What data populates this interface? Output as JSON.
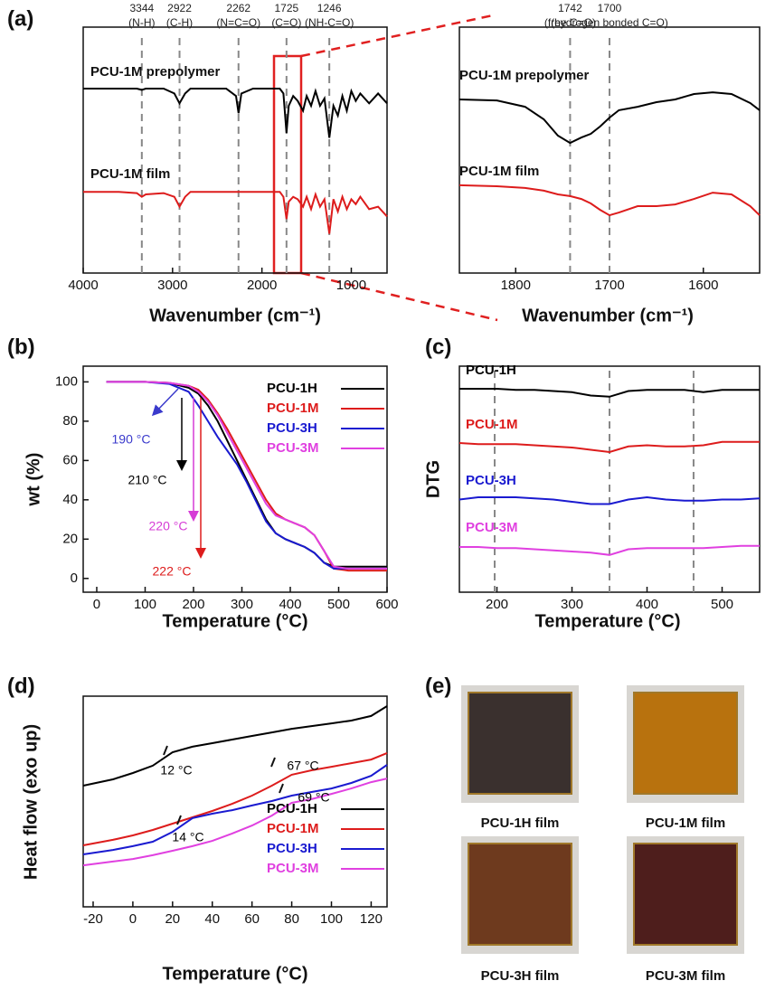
{
  "panel_labels": [
    "(a)",
    "(b)",
    "(c)",
    "(d)",
    "(e)"
  ],
  "chart_data": [
    {
      "type": "line",
      "xlabel": "Wavenumber (cm⁻¹)",
      "xlim": [
        4000,
        600
      ],
      "ylim": [
        0,
        100
      ],
      "xticks": [
        4000,
        3000,
        2000,
        1000
      ],
      "peaks": [
        {
          "value": 3344,
          "group": "(N-H)"
        },
        {
          "value": 2922,
          "group": "(C-H)"
        },
        {
          "value": 2262,
          "group": "(N=C=O)"
        },
        {
          "value": 1725,
          "group": "(C=O)"
        },
        {
          "value": 1246,
          "group": "(NH-C=O)"
        }
      ],
      "x": [
        4000,
        3600,
        3400,
        3344,
        3300,
        3100,
        2980,
        2922,
        2860,
        2800,
        2400,
        2290,
        2262,
        2230,
        2100,
        1900,
        1800,
        1760,
        1725,
        1700,
        1650,
        1600,
        1540,
        1500,
        1450,
        1400,
        1350,
        1300,
        1246,
        1200,
        1150,
        1100,
        1050,
        1000,
        950,
        900,
        800,
        700,
        600
      ],
      "series": [
        {
          "name": "PCU-1M prepolymer",
          "color": "#000000",
          "values": [
            75,
            75,
            75,
            74.5,
            75,
            75,
            73,
            69,
            73,
            75,
            75,
            72,
            65,
            73,
            75,
            75,
            75,
            73,
            57,
            68,
            72,
            70,
            66,
            72,
            68,
            74,
            68,
            71,
            55,
            68,
            64,
            72,
            66,
            74,
            70,
            73,
            69,
            73,
            69
          ]
        },
        {
          "name": "PCU-1M film",
          "color": "#dd1c1c",
          "values": [
            33,
            33,
            32.5,
            31,
            32,
            32.5,
            31,
            27,
            31,
            33,
            33,
            33,
            33,
            33,
            33,
            33,
            33,
            31,
            22,
            29,
            31,
            30,
            27,
            31,
            26,
            32,
            27,
            30,
            16,
            30,
            25,
            31,
            26,
            30,
            28,
            31,
            26,
            27,
            23
          ]
        }
      ]
    },
    {
      "type": "line",
      "xlabel": "Wavenumber (cm⁻¹)",
      "xlim": [
        1860,
        1540
      ],
      "ylim": [
        0,
        100
      ],
      "xticks": [
        1800,
        1700,
        1600
      ],
      "peaks": [
        {
          "value": 1742,
          "group": "(free C=O)"
        },
        {
          "value": 1700,
          "group": "(hydrogen bonded  C=O)"
        }
      ],
      "x": [
        1860,
        1820,
        1790,
        1770,
        1755,
        1742,
        1730,
        1720,
        1710,
        1700,
        1690,
        1670,
        1650,
        1630,
        1610,
        1590,
        1570,
        1550,
        1540
      ],
      "series": [
        {
          "name": "PCU-1M prepolymer",
          "color": "#000000",
          "values": [
            70.6,
            70.2,
            67.6,
            62.5,
            55.9,
            52.9,
            55.1,
            56.6,
            59.6,
            63.2,
            66.2,
            67.6,
            69.5,
            70.6,
            72.8,
            73.5,
            72.8,
            69.1,
            66.2
          ]
        },
        {
          "name": "PCU-1M film",
          "color": "#dd1c1c",
          "values": [
            35.7,
            35.3,
            34.6,
            33.5,
            32,
            31.3,
            30.1,
            28.3,
            25.7,
            23.5,
            24.6,
            27.2,
            27.2,
            27.9,
            30.1,
            32.7,
            32,
            27.2,
            23.5
          ]
        }
      ]
    },
    {
      "type": "line",
      "xlabel": "Temperature (°C)",
      "ylabel": "wt (%)",
      "xlim": [
        -28,
        600
      ],
      "ylim": [
        -7,
        108
      ],
      "xticks": [
        0,
        100,
        200,
        300,
        400,
        500,
        600
      ],
      "yticks": [
        0,
        20,
        40,
        60,
        80,
        100
      ],
      "legend": "upper right",
      "annotations": [
        {
          "text": "190 °C",
          "color": "#3a3acc"
        },
        {
          "text": "210 °C",
          "color": "#000000"
        },
        {
          "text": "220 °C",
          "color": "#d63cd6"
        },
        {
          "text": "222 °C",
          "color": "#dd1c1c"
        }
      ],
      "x": [
        20,
        100,
        150,
        190,
        210,
        230,
        250,
        270,
        290,
        310,
        330,
        350,
        370,
        390,
        410,
        430,
        450,
        470,
        490,
        520,
        600
      ],
      "series": [
        {
          "name": "PCU-1H",
          "color": "#000000",
          "values": [
            100,
            100,
            99.5,
            97,
            94,
            88,
            80,
            70,
            60,
            50,
            40,
            30,
            23,
            20,
            18,
            16,
            13,
            8,
            6,
            6,
            6
          ]
        },
        {
          "name": "PCU-1M",
          "color": "#dd1c1c",
          "values": [
            100,
            100,
            99.5,
            98,
            96,
            91,
            84,
            76,
            67,
            58,
            49,
            40,
            33,
            30,
            28,
            26,
            22,
            14,
            5,
            4,
            4
          ]
        },
        {
          "name": "PCU-3H",
          "color": "#1a1ad0",
          "values": [
            100,
            100,
            99,
            95,
            88,
            80,
            72,
            65,
            58,
            49,
            39,
            29,
            23,
            20,
            18,
            16,
            13,
            8,
            5,
            5,
            5
          ]
        },
        {
          "name": "PCU-3M",
          "color": "#e040e0",
          "values": [
            100,
            100,
            99.5,
            98,
            95,
            90,
            83,
            74,
            65,
            56,
            47,
            38,
            32,
            30,
            28,
            26,
            22,
            14,
            6,
            5,
            5
          ]
        }
      ]
    },
    {
      "type": "line",
      "xlabel": "Temperature (°C)",
      "ylabel": "DTG",
      "xlim": [
        150,
        550
      ],
      "ylim": [
        0,
        100
      ],
      "xticks": [
        200,
        300,
        400,
        500
      ],
      "markers": [
        197,
        350,
        462
      ],
      "x": [
        150,
        175,
        200,
        225,
        250,
        275,
        300,
        325,
        350,
        375,
        400,
        425,
        450,
        475,
        500,
        525,
        550
      ],
      "series": [
        {
          "name": "PCU-1H",
          "color": "#000000",
          "values": [
            90,
            90,
            90,
            89.5,
            89.5,
            89,
            88.5,
            87,
            86.5,
            89,
            89.5,
            89.5,
            89.5,
            88.5,
            89.5,
            89.5,
            89.5
          ]
        },
        {
          "name": "PCU-1M",
          "color": "#dd1c1c",
          "values": [
            66,
            65.5,
            65.5,
            65.5,
            65,
            64.5,
            64,
            63,
            62,
            64.5,
            65,
            64.5,
            64.5,
            65,
            66.5,
            66.5,
            66.5
          ]
        },
        {
          "name": "PCU-3H",
          "color": "#1a1ad0",
          "values": [
            41,
            42,
            42,
            42,
            41.5,
            41,
            40,
            39,
            39,
            41,
            42,
            41,
            40.5,
            40.5,
            41,
            41,
            41.5
          ]
        },
        {
          "name": "PCU-3M",
          "color": "#e040e0",
          "values": [
            20,
            20,
            19.5,
            19.5,
            19,
            18.5,
            18,
            17.5,
            16.5,
            19,
            19.5,
            19.5,
            19.5,
            19.5,
            20,
            20.5,
            20.5
          ]
        }
      ]
    },
    {
      "type": "line",
      "xlabel": "Temperature (°C)",
      "ylabel": "Heat flow (exo up)",
      "xlim": [
        -25,
        128
      ],
      "ylim": [
        0,
        100
      ],
      "xticks": [
        -20,
        0,
        20,
        40,
        60,
        80,
        100,
        120
      ],
      "legend": "lower right",
      "annotations": [
        {
          "text": "12 °C",
          "color": "#000000"
        },
        {
          "text": "67 °C",
          "color": "#000000"
        },
        {
          "text": "14 °C",
          "color": "#000000"
        },
        {
          "text": "69 °C",
          "color": "#000000"
        }
      ],
      "x": [
        -25,
        -10,
        0,
        10,
        20,
        30,
        40,
        50,
        60,
        70,
        80,
        90,
        100,
        110,
        120,
        128
      ],
      "series": [
        {
          "name": "PCU-1H",
          "color": "#000000",
          "values": [
            57.5,
            60.5,
            63.5,
            67,
            73.4,
            76,
            77.7,
            79.4,
            81.1,
            82.8,
            84.5,
            85.8,
            87.1,
            88.4,
            90.6,
            95.3
          ]
        },
        {
          "name": "PCU-1M",
          "color": "#dd1c1c",
          "values": [
            29.2,
            31.8,
            33.9,
            36.5,
            39.5,
            42.5,
            45.5,
            48.9,
            52.8,
            57.5,
            62.7,
            64.8,
            66.5,
            68.2,
            69.9,
            73
          ]
        },
        {
          "name": "PCU-3H",
          "color": "#1a1ad0",
          "values": [
            24.9,
            27,
            28.8,
            30.9,
            35.6,
            42.1,
            44.2,
            45.9,
            48.1,
            50.2,
            52.8,
            54.5,
            56.2,
            58.8,
            62.2,
            67.4
          ]
        },
        {
          "name": "PCU-3M",
          "color": "#e040e0",
          "values": [
            19.7,
            21.5,
            22.7,
            24.5,
            26.6,
            28.8,
            31.3,
            34.8,
            38.6,
            43.3,
            49.4,
            51.1,
            53.6,
            56.2,
            59.2,
            60.9
          ]
        }
      ]
    }
  ],
  "photos": [
    {
      "caption": "PCU-1H film",
      "color": "#3a302e"
    },
    {
      "caption": "PCU-1M film",
      "color": "#b8720e"
    },
    {
      "caption": "PCU-3H film",
      "color": "#6e3a1e"
    },
    {
      "caption": "PCU-3M film",
      "color": "#4e1e1c"
    }
  ]
}
